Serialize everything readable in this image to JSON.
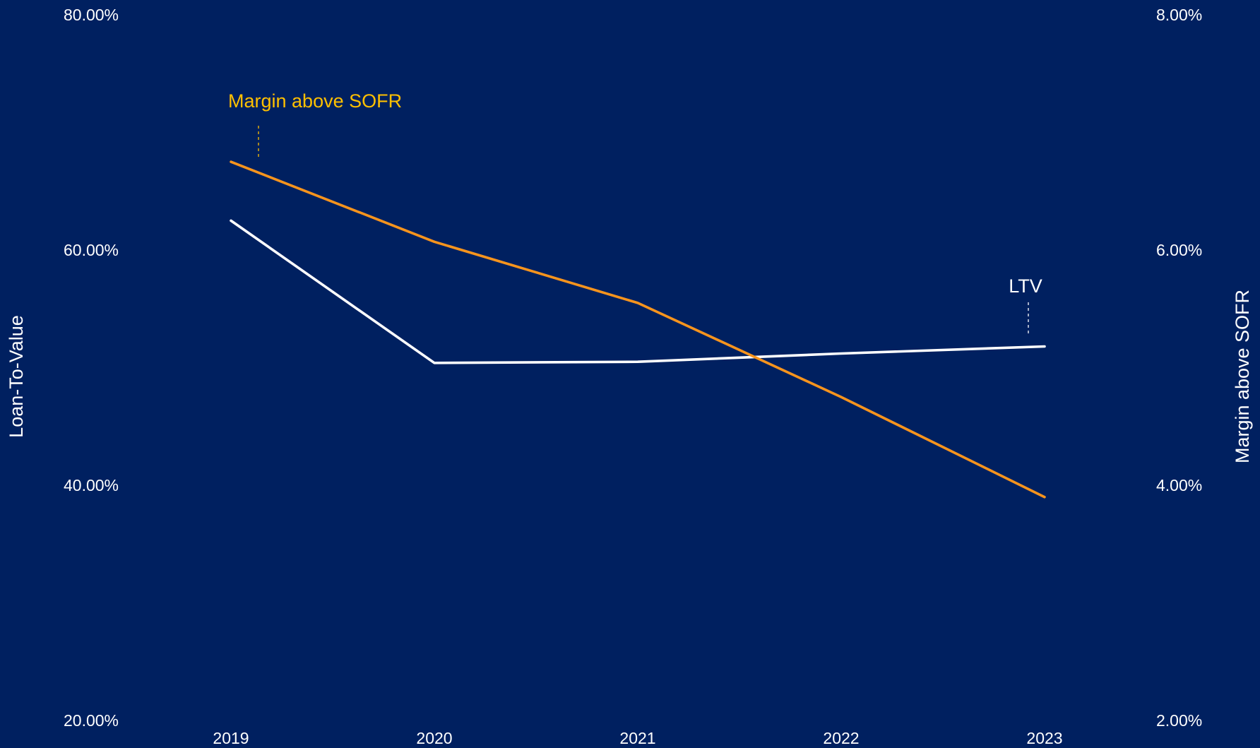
{
  "chart_data": {
    "type": "line",
    "title": "",
    "categories": [
      "2019",
      "2020",
      "2021",
      "2022",
      "2023"
    ],
    "xlabel": "",
    "y_left": {
      "label": "Loan-To-Value",
      "range": [
        20,
        80
      ],
      "ticks": [
        "20.00%",
        "40.00%",
        "60.00%",
        "80.00%"
      ]
    },
    "y_right": {
      "label": "Margin above SOFR",
      "range": [
        2,
        8
      ],
      "ticks": [
        "2.00%",
        "4.00%",
        "6.00%",
        "8.00%"
      ]
    },
    "grid": false,
    "legend": "none",
    "series": [
      {
        "name": "LTV",
        "axis": "left",
        "color": "#FFFFFF",
        "values": [
          62.5,
          50.4,
          50.5,
          51.2,
          51.8
        ]
      },
      {
        "name": "Margin above SOFR",
        "axis": "right",
        "color": "#F7941D",
        "values": [
          6.75,
          6.07,
          5.55,
          4.75,
          3.9
        ]
      }
    ],
    "annotations": [
      {
        "text": "Margin above SOFR",
        "series": 1,
        "color": "#FFC000"
      },
      {
        "text": "LTV",
        "series": 0,
        "color": "#FFFFFF"
      }
    ]
  }
}
